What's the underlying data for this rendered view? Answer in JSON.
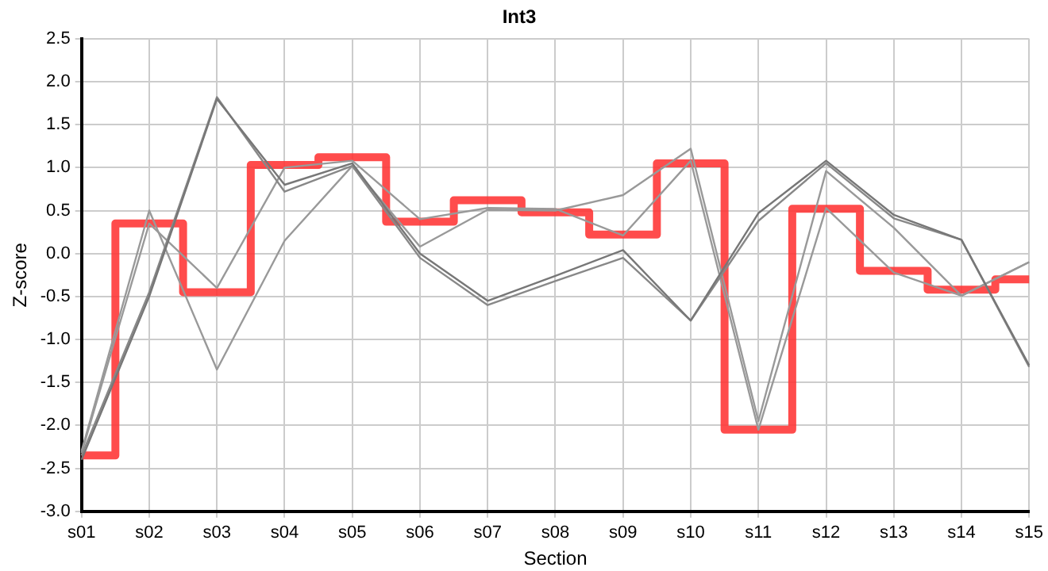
{
  "chart_data": {
    "type": "line",
    "title": "Int3",
    "xlabel": "Section",
    "ylabel": "Z-score",
    "categories": [
      "s01",
      "s02",
      "s03",
      "s04",
      "s05",
      "s06",
      "s07",
      "s08",
      "s09",
      "s10",
      "s11",
      "s12",
      "s13",
      "s14",
      "s15"
    ],
    "ylim": [
      -3,
      2.5
    ],
    "yticks": [
      {
        "value": -3,
        "label": "-3.0"
      },
      -2.5,
      {
        "value": -2,
        "label": "-2.0"
      },
      -1.5,
      {
        "value": -1,
        "label": "-1.0"
      },
      -0.5,
      {
        "value": 0,
        "label": "0.0"
      },
      0.5,
      {
        "value": 1,
        "label": "1.0"
      },
      1.5,
      {
        "value": 2,
        "label": "2.0"
      },
      2.5
    ],
    "grid": true,
    "legend": false,
    "marker": "none",
    "series": [
      {
        "type": "line",
        "color": "#777777",
        "values": [
          -2.4,
          -0.5,
          1.8,
          0.8,
          1.05,
          0.0,
          -0.55,
          -0.26,
          0.04,
          -0.78,
          0.47,
          1.08,
          0.45,
          0.16,
          -1.3
        ]
      },
      {
        "type": "line",
        "color": "#888888",
        "values": [
          -2.35,
          -0.45,
          1.82,
          0.72,
          1.02,
          -0.05,
          -0.6,
          -0.32,
          -0.05,
          -0.78,
          0.38,
          1.05,
          0.41,
          0.16,
          -1.32
        ]
      },
      {
        "type": "line",
        "color": "#999999",
        "values": [
          -2.3,
          0.5,
          -1.35,
          0.15,
          1.02,
          0.08,
          0.51,
          0.5,
          0.68,
          1.22,
          -1.95,
          0.96,
          0.3,
          -0.49,
          -0.1
        ]
      },
      {
        "type": "line",
        "color": "#999999",
        "values": [
          -2.32,
          0.35,
          -0.4,
          1.0,
          1.08,
          0.4,
          0.53,
          0.52,
          0.21,
          1.08,
          -2.05,
          0.53,
          -0.22,
          -0.49,
          -0.1
        ]
      },
      {
        "type": "step",
        "color": "#ff3333",
        "values": [
          -2.35,
          0.35,
          -0.45,
          1.03,
          1.12,
          0.37,
          0.62,
          0.48,
          0.22,
          1.05,
          -2.05,
          0.52,
          -0.2,
          -0.42,
          -0.3
        ]
      }
    ]
  }
}
